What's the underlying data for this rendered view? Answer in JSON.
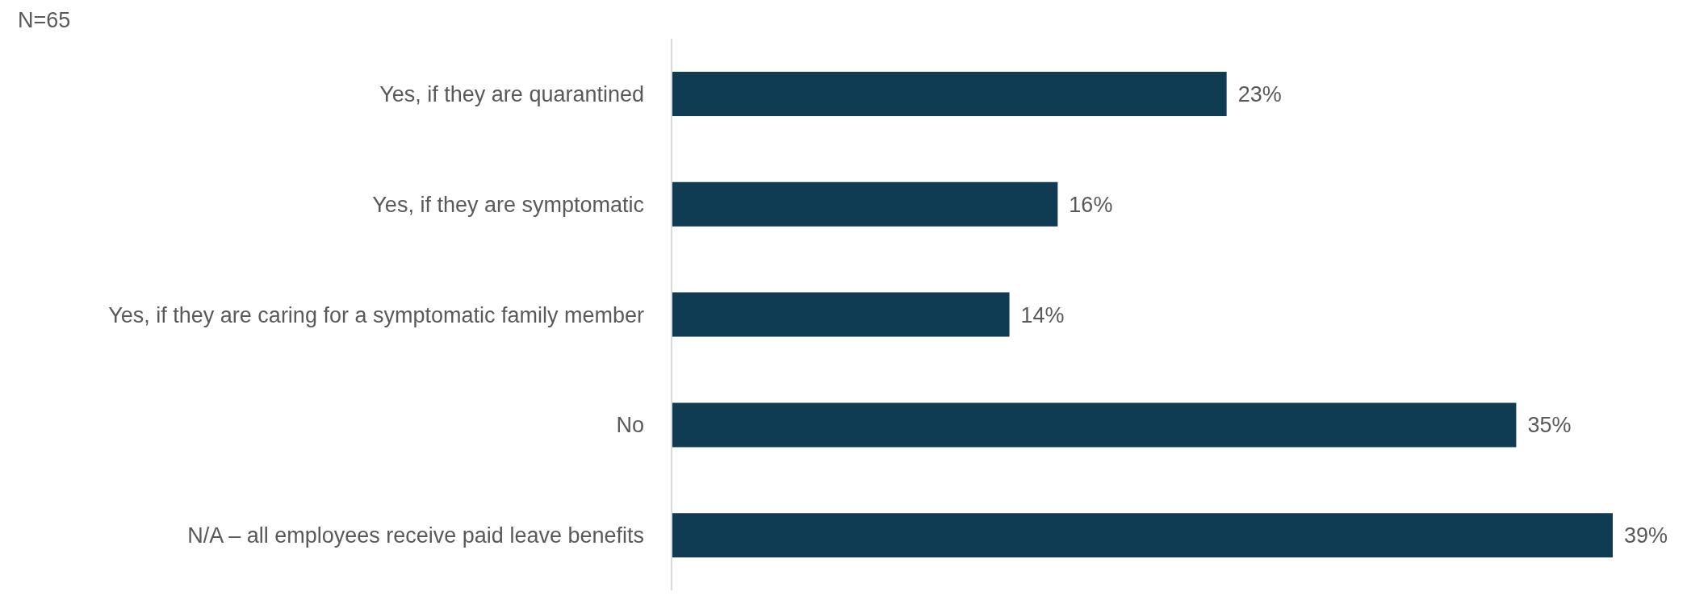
{
  "chart_data": {
    "type": "bar",
    "orientation": "horizontal",
    "annotations": [
      "N=65"
    ],
    "categories": [
      "Yes, if they are quarantined",
      "Yes, if they are symptomatic",
      "Yes, if they are caring for a symptomatic family member",
      "No",
      "N/A – all employees receive paid leave benefits"
    ],
    "values": [
      23,
      16,
      14,
      35,
      39
    ],
    "value_labels": [
      "23%",
      "16%",
      "14%",
      "35%",
      "39%"
    ],
    "color": "#0f3b53",
    "grid": false,
    "legend": false
  }
}
